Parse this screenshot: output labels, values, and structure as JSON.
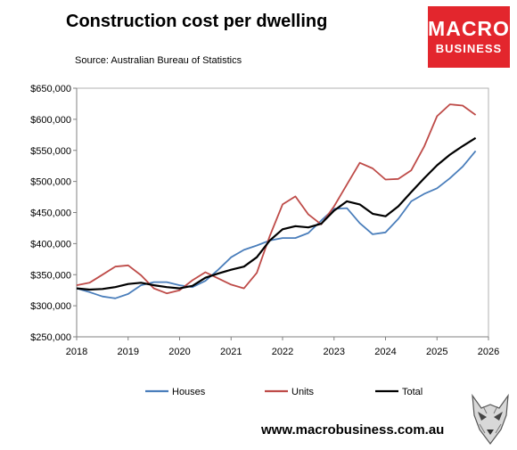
{
  "logo": {
    "line1": "MACRO",
    "line2": "BUSINESS",
    "brand_color": "#e3262d"
  },
  "footer": {
    "url": "www.macrobusiness.com.au",
    "icon": "wolf-icon"
  },
  "chart_data": {
    "type": "line",
    "title": "Construction cost per dwelling",
    "subtitle": "Source: Australian Bureau of Statistics",
    "xlabel": "",
    "ylabel": "",
    "xlim": [
      2018,
      2026
    ],
    "ylim": [
      250000,
      650000
    ],
    "x_ticks": [
      "2018",
      "2019",
      "2020",
      "2021",
      "2022",
      "2023",
      "2024",
      "2025",
      "2026"
    ],
    "y_ticks": [
      "$250,000",
      "$300,000",
      "$350,000",
      "$400,000",
      "$450,000",
      "$500,000",
      "$550,000",
      "$600,000",
      "$650,000"
    ],
    "grid": false,
    "legend": "bottom",
    "x": [
      2018.0,
      2018.25,
      2018.5,
      2018.75,
      2019.0,
      2019.25,
      2019.5,
      2019.75,
      2020.0,
      2020.25,
      2020.5,
      2020.75,
      2021.0,
      2021.25,
      2021.5,
      2021.75,
      2022.0,
      2022.25,
      2022.5,
      2022.75,
      2023.0,
      2023.25,
      2023.5,
      2023.75,
      2024.0,
      2024.25,
      2024.5,
      2024.75,
      2025.0,
      2025.25,
      2025.5,
      2025.75
    ],
    "series": [
      {
        "name": "Houses",
        "color": "#4a7ebb",
        "values": [
          328000,
          322000,
          315000,
          312000,
          319000,
          333000,
          338000,
          338000,
          333000,
          330000,
          340000,
          358000,
          378000,
          390000,
          397000,
          405000,
          409000,
          409000,
          417000,
          437000,
          456000,
          457000,
          433000,
          415000,
          418000,
          440000,
          468000,
          480000,
          489000,
          505000,
          524000,
          549000
        ]
      },
      {
        "name": "Units",
        "color": "#be4b48",
        "values": [
          333000,
          337000,
          350000,
          363000,
          365000,
          349000,
          328000,
          320000,
          325000,
          341000,
          354000,
          344000,
          334000,
          328000,
          353000,
          412000,
          463000,
          476000,
          447000,
          431000,
          460000,
          495000,
          530000,
          521000,
          503000,
          504000,
          518000,
          556000,
          605000,
          624000,
          622000,
          607000
        ]
      },
      {
        "name": "Total",
        "color": "#000000",
        "values": [
          328000,
          326000,
          327000,
          330000,
          335000,
          337000,
          333000,
          330000,
          328000,
          332000,
          345000,
          352000,
          358000,
          363000,
          378000,
          405000,
          423000,
          428000,
          426000,
          432000,
          453000,
          468000,
          463000,
          448000,
          444000,
          460000,
          483000,
          505000,
          526000,
          543000,
          557000,
          570000
        ]
      }
    ]
  }
}
